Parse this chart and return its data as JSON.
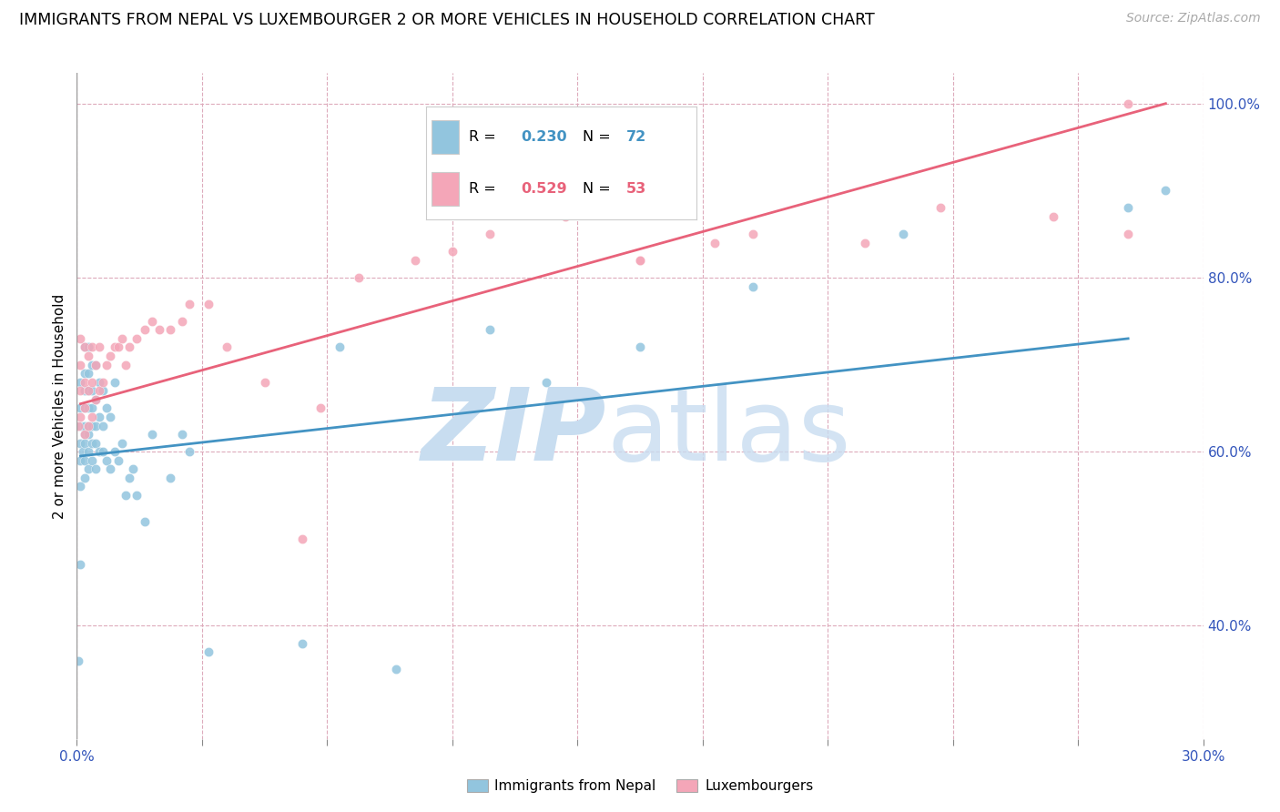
{
  "title": "IMMIGRANTS FROM NEPAL VS LUXEMBOURGER 2 OR MORE VEHICLES IN HOUSEHOLD CORRELATION CHART",
  "source": "Source: ZipAtlas.com",
  "ylabel": "2 or more Vehicles in Household",
  "xmin": 0.0,
  "xmax": 0.3,
  "ymin": 0.27,
  "ymax": 1.035,
  "yticks": [
    0.4,
    0.6,
    0.8,
    1.0
  ],
  "ytick_labels": [
    "40.0%",
    "60.0%",
    "80.0%",
    "100.0%"
  ],
  "blue_color": "#92c5de",
  "pink_color": "#f4a6b8",
  "blue_line_color": "#4393c3",
  "pink_line_color": "#e8627a",
  "nepal_line_x": [
    0.001,
    0.28
  ],
  "nepal_line_y": [
    0.595,
    0.73
  ],
  "lux_line_x": [
    0.001,
    0.29
  ],
  "lux_line_y": [
    0.655,
    1.0
  ],
  "nepal_x": [
    0.0005,
    0.001,
    0.001,
    0.001,
    0.001,
    0.001,
    0.001,
    0.001,
    0.0015,
    0.002,
    0.002,
    0.002,
    0.002,
    0.002,
    0.002,
    0.002,
    0.002,
    0.002,
    0.003,
    0.003,
    0.003,
    0.003,
    0.003,
    0.003,
    0.003,
    0.003,
    0.004,
    0.004,
    0.004,
    0.004,
    0.004,
    0.004,
    0.005,
    0.005,
    0.005,
    0.005,
    0.005,
    0.006,
    0.006,
    0.006,
    0.007,
    0.007,
    0.007,
    0.008,
    0.008,
    0.009,
    0.009,
    0.01,
    0.01,
    0.011,
    0.012,
    0.013,
    0.014,
    0.015,
    0.016,
    0.018,
    0.02,
    0.025,
    0.028,
    0.03,
    0.035,
    0.06,
    0.07,
    0.085,
    0.11,
    0.125,
    0.15,
    0.18,
    0.22,
    0.28,
    0.29
  ],
  "nepal_y": [
    0.36,
    0.47,
    0.56,
    0.59,
    0.61,
    0.63,
    0.65,
    0.68,
    0.6,
    0.57,
    0.59,
    0.61,
    0.62,
    0.63,
    0.65,
    0.67,
    0.69,
    0.72,
    0.58,
    0.6,
    0.62,
    0.63,
    0.65,
    0.67,
    0.69,
    0.72,
    0.59,
    0.61,
    0.63,
    0.65,
    0.67,
    0.7,
    0.58,
    0.61,
    0.63,
    0.66,
    0.7,
    0.6,
    0.64,
    0.68,
    0.6,
    0.63,
    0.67,
    0.59,
    0.65,
    0.58,
    0.64,
    0.6,
    0.68,
    0.59,
    0.61,
    0.55,
    0.57,
    0.58,
    0.55,
    0.52,
    0.62,
    0.57,
    0.62,
    0.6,
    0.37,
    0.38,
    0.72,
    0.35,
    0.74,
    0.68,
    0.72,
    0.79,
    0.85,
    0.88,
    0.9
  ],
  "lux_x": [
    0.0005,
    0.001,
    0.001,
    0.001,
    0.001,
    0.002,
    0.002,
    0.002,
    0.002,
    0.003,
    0.003,
    0.003,
    0.004,
    0.004,
    0.004,
    0.005,
    0.005,
    0.006,
    0.006,
    0.007,
    0.008,
    0.009,
    0.01,
    0.011,
    0.012,
    0.013,
    0.014,
    0.016,
    0.018,
    0.02,
    0.022,
    0.025,
    0.028,
    0.03,
    0.035,
    0.04,
    0.05,
    0.06,
    0.075,
    0.09,
    0.1,
    0.11,
    0.13,
    0.15,
    0.18,
    0.21,
    0.23,
    0.26,
    0.28,
    0.15,
    0.17,
    0.065,
    0.28
  ],
  "lux_y": [
    0.63,
    0.64,
    0.67,
    0.7,
    0.73,
    0.62,
    0.65,
    0.68,
    0.72,
    0.63,
    0.67,
    0.71,
    0.64,
    0.68,
    0.72,
    0.66,
    0.7,
    0.67,
    0.72,
    0.68,
    0.7,
    0.71,
    0.72,
    0.72,
    0.73,
    0.7,
    0.72,
    0.73,
    0.74,
    0.75,
    0.74,
    0.74,
    0.75,
    0.77,
    0.77,
    0.72,
    0.68,
    0.5,
    0.8,
    0.82,
    0.83,
    0.85,
    0.87,
    0.82,
    0.85,
    0.84,
    0.88,
    0.87,
    0.85,
    0.82,
    0.84,
    0.65,
    1.0
  ]
}
